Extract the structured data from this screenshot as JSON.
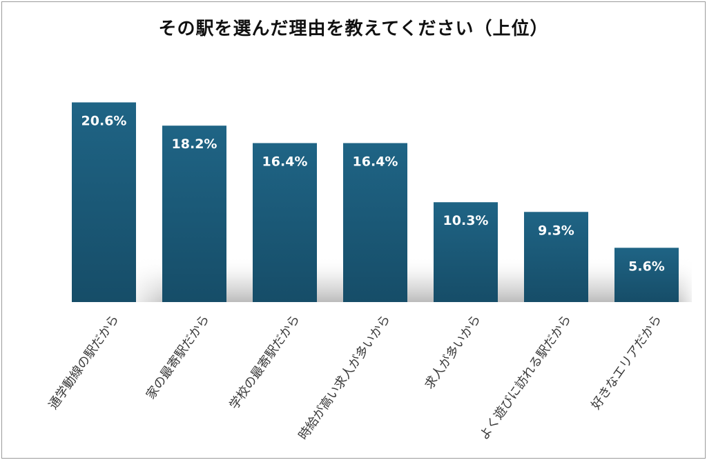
{
  "chart_data": {
    "type": "bar",
    "title": "その駅を選んだ理由を教えてください（上位）",
    "categories": [
      "通学動線の駅だから",
      "家の最寄駅だから",
      "学校の最寄駅だから",
      "時給が高い求人が多いから",
      "求人が多いから",
      "よく遊びに訪れる駅だから",
      "好きなエリアだから"
    ],
    "values": [
      20.6,
      18.2,
      16.4,
      16.4,
      10.3,
      9.3,
      5.6
    ],
    "value_labels": [
      "20.6%",
      "18.2%",
      "16.4%",
      "16.4%",
      "10.3%",
      "9.3%",
      "5.6%"
    ],
    "ylim": [
      0,
      21.7
    ],
    "grid": false,
    "legend": "none",
    "colors": {
      "bar_top": "#1f6485",
      "bar_bottom": "#164d68",
      "floor_shadow": "#bdbdbd"
    }
  }
}
